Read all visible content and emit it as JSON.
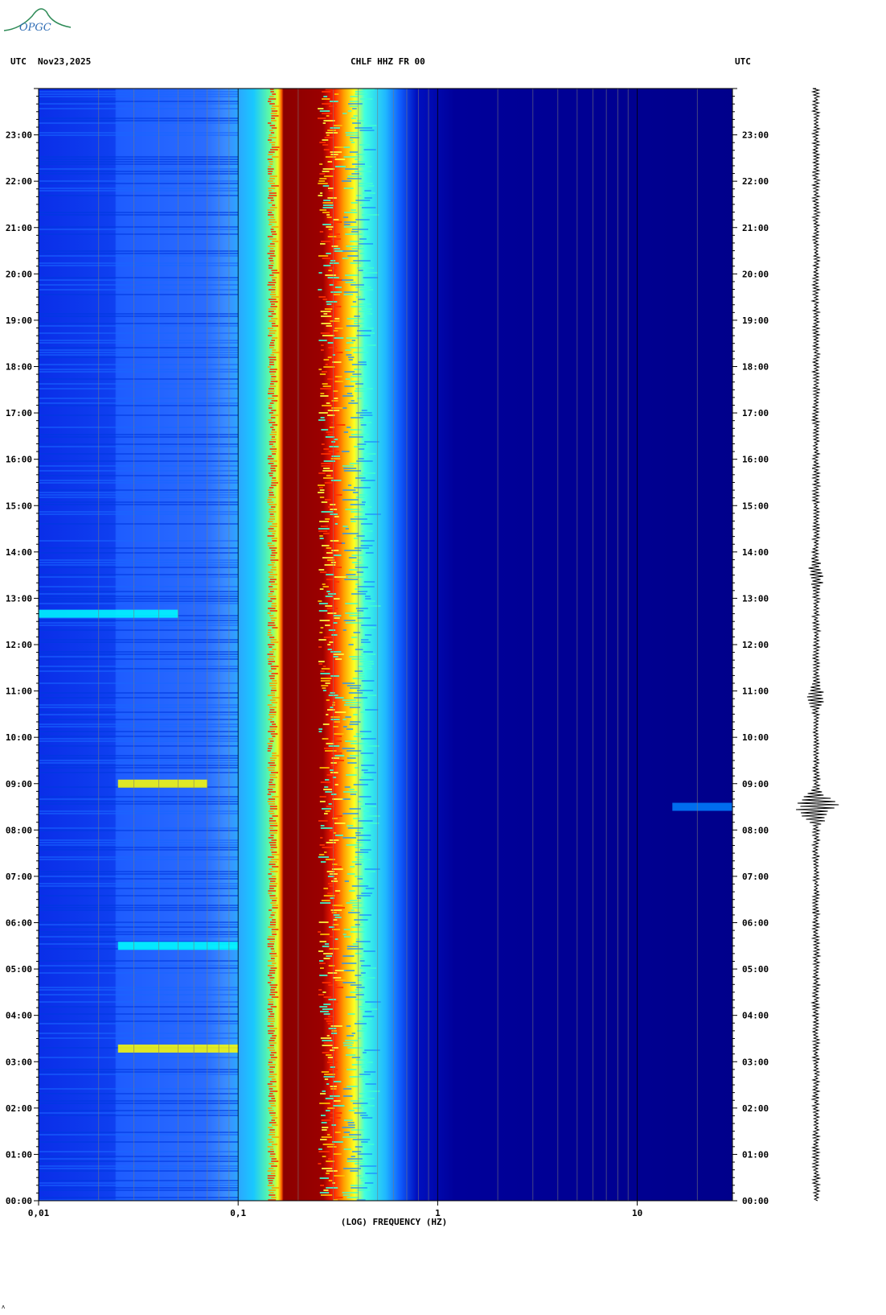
{
  "header": {
    "left_tz": "UTC",
    "date": "Nov23,2025",
    "station": "CHLF HHZ FR 00",
    "right_tz": "UTC"
  },
  "logo_text": "OPGC",
  "footer_mark": "ʌ",
  "chart_data": {
    "type": "heatmap",
    "title": "CHLF HHZ FR 00",
    "xlabel": "(LOG) FREQUENCY (HZ)",
    "x_scale": "log",
    "xlim": [
      0.01,
      30
    ],
    "x_ticks": [
      {
        "value": 0.01,
        "label": "0,01"
      },
      {
        "value": 0.1,
        "label": "0,1"
      },
      {
        "value": 1,
        "label": "1"
      },
      {
        "value": 10,
        "label": "10"
      }
    ],
    "ylim_hours": [
      0,
      24
    ],
    "y_ticks": [
      "00:00",
      "01:00",
      "02:00",
      "03:00",
      "04:00",
      "05:00",
      "06:00",
      "07:00",
      "08:00",
      "09:00",
      "10:00",
      "11:00",
      "12:00",
      "13:00",
      "14:00",
      "15:00",
      "16:00",
      "17:00",
      "18:00",
      "19:00",
      "20:00",
      "21:00",
      "22:00",
      "23:00"
    ],
    "colormap": [
      "#00008b",
      "#0000ff",
      "#0080ff",
      "#00ffff",
      "#ffff00",
      "#ff8000",
      "#ff0000",
      "#8b0000"
    ],
    "background_color": "#00008b",
    "spectral_peak": {
      "band_hz": [
        0.15,
        0.3
      ],
      "color": "#8b0000"
    },
    "events": [
      {
        "time": "03:17",
        "band_hz": [
          0.025,
          0.1
        ],
        "color": "#ffff00"
      },
      {
        "time": "09:00",
        "band_hz": [
          0.025,
          0.07
        ],
        "color": "#ffff00"
      },
      {
        "time": "05:30",
        "band_hz": [
          0.025,
          0.1
        ],
        "color": "#00ffff"
      },
      {
        "time": "12:40",
        "band_hz": [
          0.01,
          0.05
        ],
        "color": "#00ffff"
      },
      {
        "time": "08:30",
        "band_hz": [
          15,
          30
        ],
        "color": "#0080ff"
      }
    ],
    "seismogram_bursts": [
      "08:30",
      "10:55",
      "13:30"
    ],
    "grid": true
  }
}
